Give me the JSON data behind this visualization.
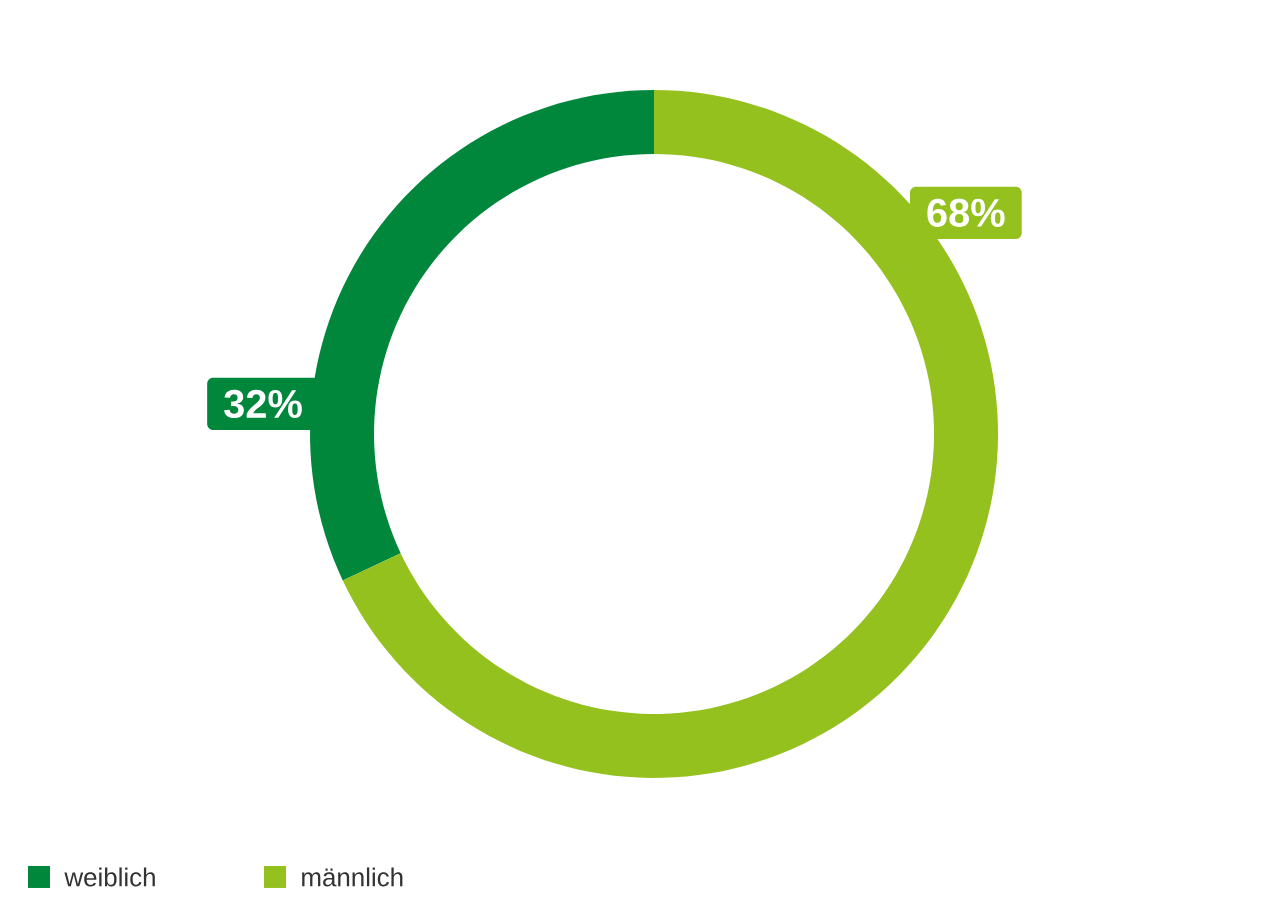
{
  "chart_data": {
    "type": "donut",
    "categories": [
      "weiblich",
      "männlich"
    ],
    "values": [
      32,
      68
    ],
    "colors": [
      "#00873c",
      "#95c11f"
    ],
    "value_labels": [
      "32%",
      "68%"
    ],
    "legend": "bottom left"
  }
}
